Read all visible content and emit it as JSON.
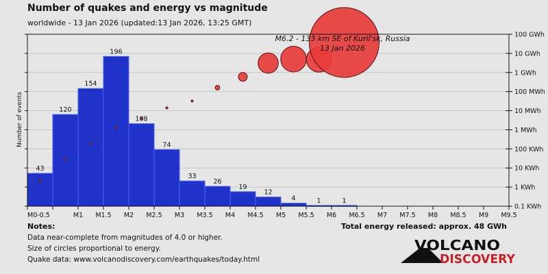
{
  "title": "Number of quakes and energy vs magnitude",
  "subtitle": "worldwide - 13 Jan 2026 (updated:13 Jan 2026, 13:25 GMT)",
  "notes": {
    "heading": "Notes:",
    "lines": [
      "Data near-complete from magnitudes of 4.0 or higher.",
      "Size of circles proportional to energy.",
      "Quake data: www.volcanodiscovery.com/earthquakes/today.html"
    ]
  },
  "total_energy": "Total energy released: approx. 48 GWh",
  "logo": {
    "line1": "VOLCANO",
    "line2": "DISCOVERY"
  },
  "chart_data": {
    "type": "bar",
    "title": "Number of quakes and energy vs magnitude",
    "ylabel": "Number of events",
    "y2label": "",
    "bins": [
      0,
      0.5,
      1,
      1.5,
      2,
      2.5,
      3,
      3.5,
      4,
      4.5,
      5,
      5.5,
      6,
      6.5,
      7,
      7.5,
      8,
      8.5,
      9,
      9.5
    ],
    "x_tick_labels": [
      "M0-0.5",
      "",
      "M1",
      "M1.5",
      "M2",
      "M2.5",
      "M3",
      "M3.5",
      "M4",
      "M4.5",
      "M5",
      "M5.5",
      "M6",
      "M6.5",
      "M7",
      "M7.5",
      "M8",
      "M8.5",
      "M9",
      "M9.5"
    ],
    "counts": [
      43,
      120,
      154,
      196,
      108,
      74,
      33,
      26,
      19,
      12,
      4,
      1,
      1,
      0,
      0,
      0,
      0,
      0,
      0
    ],
    "count_labels": [
      "43",
      "120",
      "154",
      "196",
      "108",
      "74",
      "33",
      "26",
      "19",
      "12",
      "4",
      "1",
      "1"
    ],
    "ylim": [
      0,
      225
    ],
    "energy_series": {
      "type": "scatter",
      "unit": "kWh",
      "scale": "log",
      "values_kwh": [
        2,
        27,
        200,
        1300,
        3900,
        14000,
        32000,
        160000,
        590000,
        3100000,
        5000000,
        4700000,
        37000000
      ],
      "ylim_kwh": [
        0.1,
        100000000
      ],
      "tick_labels": [
        "0.1 KWh",
        "1 KWh",
        "10 KWh",
        "100 KWh",
        "1 MWh",
        "10 MWh",
        "100 MWh",
        "1 GWh",
        "10 GWh",
        "100 GWh"
      ]
    },
    "annotation": {
      "line1": "M6.2 - 133 km SE of Kuril'sk, Russia",
      "line2": "13 Jan 2026"
    },
    "grid": true,
    "colors": {
      "bar": "#2033c8",
      "bar_edge": "#4a64f0",
      "circle": "#e83c3c",
      "circle_edge": "#5a1010",
      "grid": "#c4c4c4"
    }
  }
}
